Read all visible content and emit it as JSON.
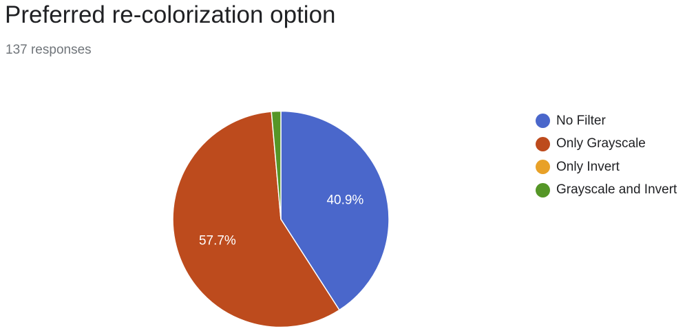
{
  "header": {
    "title": "Preferred re-colorization option",
    "subtitle": "137 responses"
  },
  "chart_data": {
    "type": "pie",
    "title": "Preferred re-colorization option",
    "subtitle": "137 responses",
    "total_responses": 137,
    "start_angle_deg": 90,
    "direction": "clockwise",
    "legend_position": "right",
    "slices": [
      {
        "name": "No Filter",
        "percent": 40.9,
        "label": "40.9%",
        "color": "#4a67cb"
      },
      {
        "name": "Only Grayscale",
        "percent": 57.7,
        "label": "57.7%",
        "color": "#bd4b1d"
      },
      {
        "name": "Only Invert",
        "percent": 0.0,
        "label": "",
        "color": "#e8a128"
      },
      {
        "name": "Grayscale and Invert",
        "percent": 1.4,
        "label": "",
        "color": "#559627"
      }
    ]
  }
}
